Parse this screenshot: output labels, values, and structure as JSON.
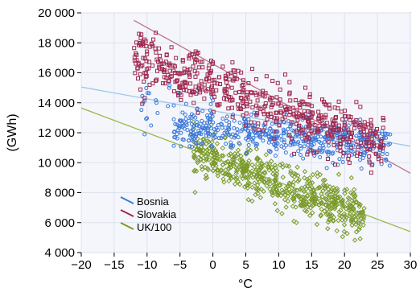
{
  "chart_data": {
    "type": "scatter",
    "xlabel": "°C",
    "ylabel": "(GWh)",
    "xlim": [
      -20,
      30
    ],
    "ylim": [
      4000,
      20000
    ],
    "x_ticks": [
      "−20",
      "−15",
      "−10",
      "−5",
      "0",
      "5",
      "10",
      "15",
      "20",
      "25",
      "30"
    ],
    "y_ticks": [
      "4 000",
      "6 000",
      "8 000",
      "10 000",
      "12 000",
      "14 000",
      "16 000",
      "18 000",
      "20 000"
    ],
    "x_tick_values": [
      -20,
      -15,
      -10,
      -5,
      0,
      5,
      10,
      15,
      20,
      25,
      30
    ],
    "y_tick_values": [
      4000,
      6000,
      8000,
      10000,
      12000,
      14000,
      16000,
      18000,
      20000
    ],
    "grid": true,
    "legend_position": "bottom-left",
    "series": [
      {
        "name": "Bosnia",
        "color": "#3b78d8",
        "line_color": "#9dc8e8",
        "marker": "circle",
        "trend": [
          [
            -20,
            15050
          ],
          [
            30,
            11100
          ]
        ],
        "clusters": [
          {
            "x_range": [
              -6,
              27
            ],
            "center_fn": [
              12100,
              -35
            ],
            "spread": 650,
            "count": 520
          },
          {
            "x_range": [
              -12,
              0
            ],
            "center_fn": [
              13700,
              0
            ],
            "spread": 900,
            "count": 40
          }
        ]
      },
      {
        "name": "Slovakia",
        "color": "#a0284e",
        "line_color": "#c07090",
        "marker": "square",
        "trend": [
          [
            -12,
            19500
          ],
          [
            30,
            9300
          ]
        ],
        "clusters": [
          {
            "x_range": [
              -12,
              26
            ],
            "center_fn": [
              15200,
              -160
            ],
            "spread": 900,
            "count": 560
          }
        ]
      },
      {
        "name": "UK/100",
        "color": "#7a9a2a",
        "line_color": "#9bb84a",
        "marker": "diamond",
        "trend": [
          [
            -20,
            13650
          ],
          [
            30,
            5400
          ]
        ],
        "clusters": [
          {
            "x_range": [
              -3,
              23
            ],
            "center_fn": [
              10200,
              -160
            ],
            "spread": 750,
            "count": 600
          }
        ]
      }
    ]
  }
}
